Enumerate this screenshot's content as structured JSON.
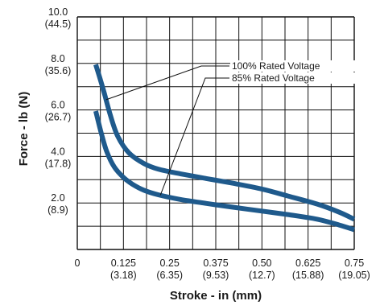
{
  "chart_data": {
    "type": "line",
    "xlabel": "Stroke - in (mm)",
    "ylabel": "Force - lb (N)",
    "xlim": [
      0,
      0.75
    ],
    "ylim": [
      0,
      10
    ],
    "grid": true,
    "x_ticks": [
      {
        "value": 0,
        "main": "0",
        "sub": ""
      },
      {
        "value": 0.125,
        "main": "0.125",
        "sub": "(3.18)"
      },
      {
        "value": 0.25,
        "main": "0.25",
        "sub": "(6.35)"
      },
      {
        "value": 0.375,
        "main": "0.375",
        "sub": "(9.53)"
      },
      {
        "value": 0.5,
        "main": "0.50",
        "sub": "(12.7)"
      },
      {
        "value": 0.625,
        "main": "0.625",
        "sub": "(15.88)"
      },
      {
        "value": 0.75,
        "main": "0.75",
        "sub": "(19.05)"
      }
    ],
    "y_ticks": [
      {
        "value": 10,
        "main": "10.0",
        "sub": "(44.5)"
      },
      {
        "value": 8,
        "main": "8.0",
        "sub": "(35.6)"
      },
      {
        "value": 6,
        "main": "6.0",
        "sub": "(26.7)"
      },
      {
        "value": 4,
        "main": "4.0",
        "sub": "(17.8)"
      },
      {
        "value": 2,
        "main": "2.0",
        "sub": "(8.9)"
      }
    ],
    "series": [
      {
        "name": "100% Rated Voltage",
        "color": "#1f5a8c",
        "x": [
          0.05,
          0.07,
          0.09,
          0.11,
          0.14,
          0.18,
          0.22,
          0.28,
          0.35,
          0.42,
          0.5,
          0.57,
          0.65,
          0.71,
          0.75
        ],
        "y": [
          7.95,
          6.9,
          5.75,
          4.85,
          4.15,
          3.7,
          3.45,
          3.25,
          3.05,
          2.85,
          2.6,
          2.3,
          1.95,
          1.6,
          1.3
        ]
      },
      {
        "name": "85% Rated Voltage",
        "color": "#1f5a8c",
        "x": [
          0.05,
          0.065,
          0.08,
          0.1,
          0.125,
          0.15,
          0.18,
          0.22,
          0.28,
          0.35,
          0.42,
          0.5,
          0.57,
          0.65,
          0.71,
          0.75
        ],
        "y": [
          5.95,
          5.0,
          4.2,
          3.55,
          3.1,
          2.8,
          2.55,
          2.35,
          2.15,
          1.98,
          1.82,
          1.65,
          1.5,
          1.3,
          1.05,
          0.85
        ]
      }
    ],
    "annotations": [
      {
        "text": "100% Rated Voltage",
        "series": 0,
        "point_x": 0.078
      },
      {
        "text": "85% Rated Voltage",
        "series": 1,
        "point_x": 0.225
      }
    ]
  }
}
